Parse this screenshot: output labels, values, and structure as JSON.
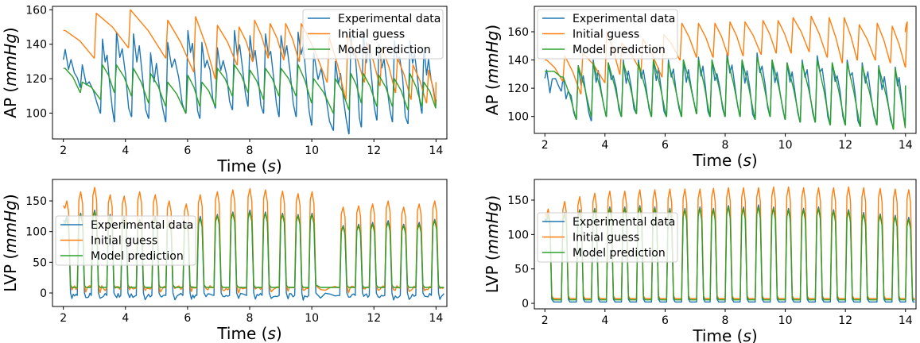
{
  "colors": {
    "experimental": "#1f77b4",
    "initial": "#ff7f0e",
    "model": "#2ca02c"
  },
  "chart_data": [
    {
      "id": "ap-left",
      "type": "line",
      "xlabel": "Time",
      "xlabel_unit": "s",
      "ylabel": "AP",
      "ylabel_unit": "mmHg",
      "xlim": [
        1.65,
        14.35
      ],
      "ylim": [
        85,
        162
      ],
      "xticks": [
        "2",
        "4",
        "6",
        "8",
        "10",
        "12",
        "14"
      ],
      "yticks": [
        "100",
        "120",
        "140",
        "160"
      ],
      "legend_position": "top-right",
      "series": [
        {
          "name": "Experimental data",
          "color": "#1f77b4",
          "kind": "ap_exp",
          "beats": [
            2.0,
            2.55,
            3.2,
            3.65,
            4.2,
            4.75,
            5.3,
            5.95,
            6.4,
            6.9,
            7.45,
            7.95,
            8.45,
            8.95,
            9.5,
            10.0,
            10.7,
            11.2,
            11.6,
            12.1,
            12.6,
            13.1,
            13.55
          ],
          "peaks": [
            137,
            128,
            143,
            147,
            146,
            135,
            141,
            148,
            141,
            138,
            148,
            145,
            146,
            145,
            147,
            135,
            130,
            145,
            146,
            140,
            142,
            142,
            138
          ],
          "troughs": [
            115,
            100,
            95,
            98,
            97,
            95,
            100,
            97,
            103,
            102,
            104,
            100,
            98,
            98,
            93,
            90,
            88,
            92,
            96,
            95,
            94,
            100,
            105
          ],
          "end": 105
        },
        {
          "name": "Initial guess",
          "color": "#ff7f0e",
          "kind": "ap_sim",
          "beats": [
            2.0,
            3.0,
            4.1,
            5.3,
            6.2,
            6.9,
            7.6,
            8.1,
            8.6,
            9.1,
            9.6,
            10.5,
            11.1,
            11.7,
            12.2,
            12.7,
            13.2,
            13.7
          ],
          "peaks": [
            148,
            158,
            160,
            154,
            156,
            151,
            150,
            154,
            152,
            152,
            152,
            144,
            145,
            141,
            138,
            132,
            128,
            125
          ],
          "troughs": [
            132,
            138,
            132,
            124,
            120,
            128,
            130,
            132,
            131,
            130,
            118,
            108,
            118,
            116,
            112,
            108,
            106,
            104
          ],
          "end": 118
        },
        {
          "name": "Model prediction",
          "color": "#2ca02c",
          "kind": "ap_sim",
          "beats": [
            2.0,
            2.55,
            3.2,
            3.65,
            4.2,
            4.75,
            5.3,
            5.95,
            6.4,
            6.9,
            7.45,
            7.95,
            8.45,
            8.95,
            9.5,
            10.0,
            10.7,
            11.2,
            11.6,
            12.1,
            12.6,
            13.1,
            13.55
          ],
          "peaks": [
            126,
            118,
            128,
            128,
            126,
            123,
            118,
            122,
            118,
            126,
            128,
            125,
            126,
            126,
            128,
            120,
            120,
            123,
            123,
            122,
            120,
            123,
            118
          ],
          "troughs": [
            112,
            108,
            112,
            110,
            106,
            104,
            100,
            104,
            104,
            110,
            112,
            108,
            110,
            110,
            106,
            100,
            102,
            106,
            104,
            104,
            102,
            104,
            103
          ],
          "end": 108
        }
      ]
    },
    {
      "id": "ap-right",
      "type": "line",
      "xlabel": "Time",
      "xlabel_unit": "s",
      "ylabel": "AP",
      "ylabel_unit": "mmHg",
      "xlim": [
        1.65,
        14.35
      ],
      "ylim": [
        88,
        178
      ],
      "xticks": [
        "2",
        "4",
        "6",
        "8",
        "10",
        "12",
        "14"
      ],
      "yticks": [
        "100",
        "120",
        "140",
        "160"
      ],
      "legend_position": "top-left",
      "series": [
        {
          "name": "Experimental data",
          "color": "#1f77b4",
          "kind": "ap_exp",
          "beats": [
            2.0,
            2.55,
            3.05,
            3.55,
            4.05,
            4.55,
            5.05,
            5.55,
            6.05,
            6.55,
            7.05,
            7.5,
            8.0,
            8.5,
            9.0,
            9.5,
            10.0,
            10.5,
            11.0,
            11.5,
            12.0,
            12.5,
            13.05,
            13.6
          ],
          "peaks": [
            133,
            128,
            136,
            140,
            138,
            140,
            140,
            140,
            140,
            140,
            142,
            140,
            145,
            140,
            145,
            140,
            138,
            140,
            143,
            138,
            140,
            138,
            136,
            135
          ],
          "troughs": [
            118,
            98,
            97,
            100,
            100,
            102,
            100,
            100,
            100,
            102,
            100,
            100,
            100,
            98,
            100,
            98,
            96,
            96,
            94,
            94,
            93,
            94,
            92,
            93
          ],
          "end": 122
        },
        {
          "name": "Initial guess",
          "color": "#ff7f0e",
          "kind": "ap_sim",
          "beats": [
            2.0,
            2.6,
            3.2,
            4.0,
            4.5,
            5.2,
            5.9,
            6.5,
            7.05,
            7.6,
            8.1,
            8.6,
            9.2,
            9.7,
            10.2,
            10.8,
            11.4,
            11.9,
            12.4,
            13.0,
            13.5,
            14.0
          ],
          "peaks": [
            140,
            143,
            145,
            160,
            152,
            155,
            158,
            166,
            166,
            166,
            167,
            167,
            168,
            168,
            170,
            171,
            170,
            170,
            165,
            166,
            164,
            167
          ],
          "troughs": [
            125,
            116,
            124,
            130,
            132,
            128,
            140,
            142,
            142,
            143,
            143,
            144,
            145,
            145,
            146,
            142,
            138,
            140,
            140,
            138,
            135,
            160
          ],
          "end": 163
        },
        {
          "name": "Model prediction",
          "color": "#2ca02c",
          "kind": "ap_sim",
          "beats": [
            2.0,
            2.55,
            3.05,
            3.55,
            4.05,
            4.55,
            5.05,
            5.55,
            6.05,
            6.55,
            7.05,
            7.5,
            8.0,
            8.5,
            9.0,
            9.5,
            10.0,
            10.5,
            11.0,
            11.5,
            12.0,
            12.5,
            13.05,
            13.6
          ],
          "peaks": [
            132,
            128,
            136,
            138,
            138,
            138,
            138,
            140,
            138,
            140,
            140,
            140,
            142,
            140,
            142,
            140,
            138,
            138,
            140,
            138,
            138,
            136,
            135,
            134
          ],
          "troughs": [
            128,
            98,
            100,
            100,
            100,
            102,
            100,
            100,
            100,
            102,
            100,
            100,
            100,
            98,
            100,
            98,
            96,
            96,
            94,
            94,
            93,
            94,
            91,
            92
          ],
          "end": 122
        }
      ]
    },
    {
      "id": "lvp-left",
      "type": "line",
      "xlabel": "Time",
      "xlabel_unit": "s",
      "ylabel": "LVP",
      "ylabel_unit": "mmHg",
      "xlim": [
        1.65,
        14.35
      ],
      "ylim": [
        -22,
        185
      ],
      "xticks": [
        "2",
        "4",
        "6",
        "8",
        "10",
        "12",
        "14"
      ],
      "yticks": [
        "0",
        "50",
        "100",
        "150"
      ],
      "legend_position": "middle-left",
      "series": [
        {
          "name": "Experimental data",
          "color": "#1f77b4",
          "kind": "lvp",
          "baseline": -4,
          "noisy": true,
          "beats": [
            2.0,
            2.45,
            2.9,
            3.4,
            3.85,
            4.35,
            4.85,
            5.3,
            5.85,
            6.3,
            6.85,
            7.35,
            7.9,
            8.4,
            8.95,
            9.45,
            9.9,
            10.9,
            11.4,
            11.85,
            12.35,
            12.85,
            13.35,
            13.85
          ],
          "peaks": [
            125,
            130,
            135,
            128,
            125,
            120,
            125,
            118,
            115,
            125,
            128,
            132,
            135,
            132,
            130,
            128,
            130,
            110,
            112,
            115,
            118,
            112,
            115,
            120
          ]
        },
        {
          "name": "Initial guess",
          "color": "#ff7f0e",
          "kind": "lvp",
          "baseline": 8,
          "noisy": true,
          "beats": [
            2.0,
            2.45,
            2.9,
            3.4,
            3.85,
            4.35,
            4.85,
            5.3,
            5.85,
            6.3,
            6.85,
            7.35,
            7.9,
            8.4,
            8.95,
            9.45,
            9.9,
            10.9,
            11.4,
            11.85,
            12.35,
            12.85,
            13.35,
            13.85
          ],
          "peaks": [
            150,
            165,
            172,
            160,
            158,
            165,
            160,
            150,
            145,
            160,
            165,
            168,
            170,
            168,
            166,
            162,
            165,
            140,
            142,
            145,
            150,
            140,
            145,
            150
          ]
        },
        {
          "name": "Model prediction",
          "color": "#2ca02c",
          "kind": "lvp",
          "baseline": 9,
          "noisy": false,
          "beats": [
            2.0,
            2.45,
            2.9,
            3.4,
            3.85,
            4.35,
            4.85,
            5.3,
            5.85,
            6.3,
            6.85,
            7.35,
            7.9,
            8.4,
            8.95,
            9.45,
            9.9,
            10.9,
            11.4,
            11.85,
            12.35,
            12.85,
            13.35,
            13.85
          ],
          "peaks": [
            120,
            128,
            132,
            125,
            122,
            118,
            122,
            115,
            112,
            122,
            126,
            130,
            132,
            130,
            128,
            126,
            128,
            108,
            110,
            112,
            115,
            110,
            112,
            118
          ]
        }
      ]
    },
    {
      "id": "lvp-right",
      "type": "line",
      "xlabel": "Time",
      "xlabel_unit": "s",
      "ylabel": "LVP",
      "ylabel_unit": "mmHg",
      "xlim": [
        1.65,
        14.35
      ],
      "ylim": [
        -8,
        180
      ],
      "xticks": [
        "2",
        "4",
        "6",
        "8",
        "10",
        "12",
        "14"
      ],
      "yticks": [
        "0",
        "50",
        "100",
        "150"
      ],
      "legend_position": "middle-left",
      "series": [
        {
          "name": "Experimental data",
          "color": "#1f77b4",
          "kind": "lvp",
          "baseline": 2,
          "noisy": false,
          "beats": [
            2.0,
            2.55,
            3.05,
            3.55,
            4.05,
            4.55,
            5.05,
            5.55,
            6.05,
            6.55,
            7.05,
            7.5,
            8.0,
            8.5,
            9.0,
            9.5,
            10.0,
            10.5,
            11.0,
            11.5,
            12.0,
            12.5,
            13.05,
            13.55,
            14.0
          ],
          "peaks": [
            130,
            132,
            136,
            138,
            140,
            140,
            142,
            140,
            138,
            138,
            140,
            138,
            142,
            140,
            143,
            140,
            138,
            138,
            140,
            136,
            136,
            132,
            130,
            128,
            125
          ]
        },
        {
          "name": "Initial guess",
          "color": "#ff7f0e",
          "kind": "lvp",
          "baseline": 7,
          "noisy": false,
          "beats": [
            2.0,
            2.55,
            3.05,
            3.55,
            4.05,
            4.55,
            5.05,
            5.55,
            6.05,
            6.55,
            7.05,
            7.5,
            8.0,
            8.5,
            9.0,
            9.5,
            10.0,
            10.5,
            11.0,
            11.5,
            12.0,
            12.5,
            13.05,
            13.55,
            14.0
          ],
          "peaks": [
            137,
            148,
            155,
            160,
            163,
            163,
            165,
            165,
            166,
            166,
            166,
            167,
            168,
            168,
            168,
            169,
            169,
            168,
            168,
            168,
            169,
            168,
            167,
            166,
            165
          ]
        },
        {
          "name": "Model prediction",
          "color": "#2ca02c",
          "kind": "lvp",
          "baseline": 5,
          "noisy": false,
          "beats": [
            2.0,
            2.55,
            3.05,
            3.55,
            4.05,
            4.55,
            5.05,
            5.55,
            6.05,
            6.55,
            7.05,
            7.5,
            8.0,
            8.5,
            9.0,
            9.5,
            10.0,
            10.5,
            11.0,
            11.5,
            12.0,
            12.5,
            13.05,
            13.55,
            14.0
          ],
          "peaks": [
            128,
            130,
            134,
            136,
            138,
            138,
            140,
            138,
            136,
            136,
            138,
            136,
            140,
            138,
            140,
            138,
            136,
            136,
            138,
            134,
            134,
            130,
            128,
            126,
            122
          ]
        }
      ]
    }
  ]
}
